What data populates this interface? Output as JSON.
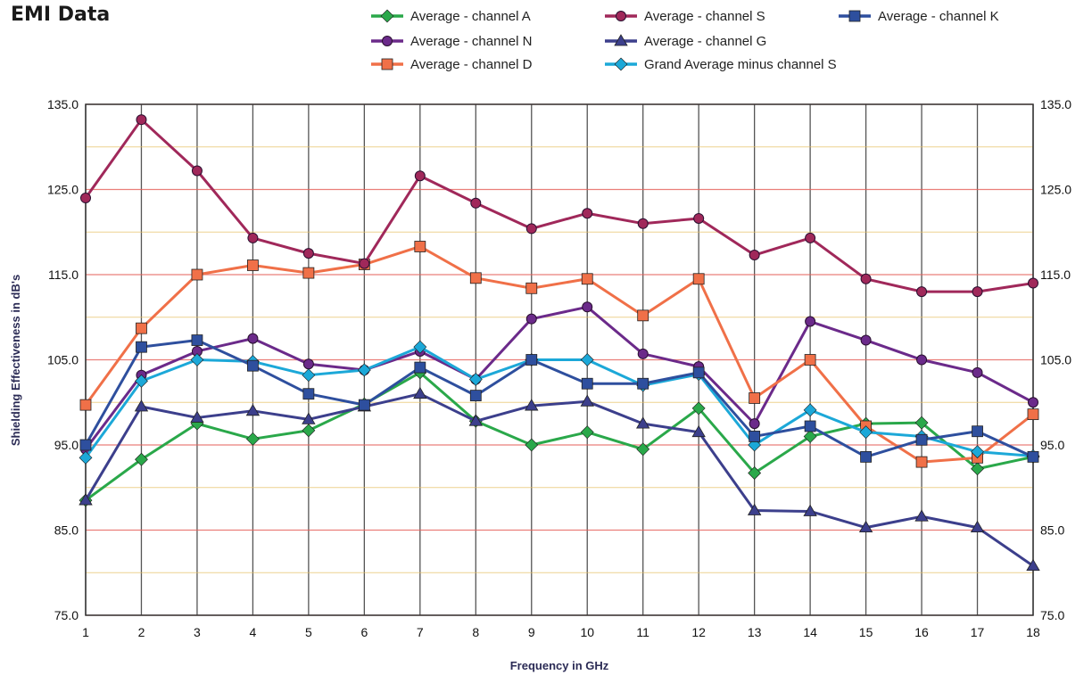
{
  "title": "EMI Data",
  "chart_data": {
    "type": "line",
    "xlabel": "Frequency in GHz",
    "ylabel": "Shielding Effectiveness in dB's",
    "x": [
      1,
      2,
      3,
      4,
      5,
      6,
      7,
      8,
      9,
      10,
      11,
      12,
      13,
      14,
      15,
      16,
      17,
      18
    ],
    "ylim": [
      75.0,
      135.0
    ],
    "yticks": [
      "75.0",
      "85.0",
      "95.0",
      "105.0",
      "115.0",
      "125.0",
      "135.0"
    ],
    "grid": true,
    "legend_position": "top",
    "series": [
      {
        "name": "Average - channel A",
        "color": "#2aa84a",
        "marker": "diamond",
        "values": [
          88.5,
          93.3,
          97.5,
          95.7,
          96.7,
          99.8,
          103.5,
          97.8,
          95.0,
          96.5,
          94.5,
          99.3,
          91.7,
          96.0,
          97.5,
          97.6,
          92.2,
          93.6
        ]
      },
      {
        "name": "Average - channel N",
        "color": "#6b2a8a",
        "marker": "circle",
        "values": [
          94.5,
          103.2,
          106.0,
          107.5,
          104.5,
          103.8,
          106.0,
          102.7,
          109.8,
          111.2,
          105.7,
          104.2,
          97.5,
          109.5,
          107.3,
          105.0,
          103.5,
          100.0
        ]
      },
      {
        "name": "Average - channel D",
        "color": "#f07048",
        "marker": "square",
        "values": [
          99.7,
          108.7,
          115.0,
          116.1,
          115.2,
          116.2,
          118.3,
          114.6,
          113.4,
          114.5,
          110.2,
          114.5,
          100.5,
          105.0,
          97.2,
          93.0,
          93.5,
          98.6
        ]
      },
      {
        "name": "Average - channel S",
        "color": "#a0285a",
        "marker": "circle",
        "values": [
          124.0,
          133.2,
          127.2,
          119.3,
          117.5,
          116.3,
          126.6,
          123.4,
          120.4,
          122.2,
          121.0,
          121.6,
          117.3,
          119.3,
          114.5,
          113.0,
          113.0,
          114.0
        ]
      },
      {
        "name": "Average - channel G",
        "color": "#3c3f8c",
        "marker": "triangle",
        "values": [
          88.5,
          99.5,
          98.2,
          99.0,
          98.0,
          99.5,
          101.0,
          97.8,
          99.6,
          100.1,
          97.5,
          96.5,
          87.3,
          87.2,
          85.3,
          86.6,
          85.3,
          80.8
        ]
      },
      {
        "name": "Grand Average minus channel S",
        "color": "#1ca8d8",
        "marker": "diamond",
        "values": [
          93.5,
          102.5,
          105.0,
          104.8,
          103.2,
          103.8,
          106.5,
          102.7,
          105.0,
          105.0,
          102.0,
          103.3,
          95.0,
          99.1,
          96.5,
          96.0,
          94.2,
          93.7
        ]
      },
      {
        "name": "Average - channel K",
        "color": "#2e4f9e",
        "marker": "square",
        "values": [
          95.0,
          106.5,
          107.3,
          104.3,
          101.0,
          99.7,
          104.1,
          100.8,
          105.0,
          102.2,
          102.2,
          103.5,
          96.0,
          97.2,
          93.6,
          95.6,
          96.6,
          93.6
        ]
      }
    ]
  }
}
